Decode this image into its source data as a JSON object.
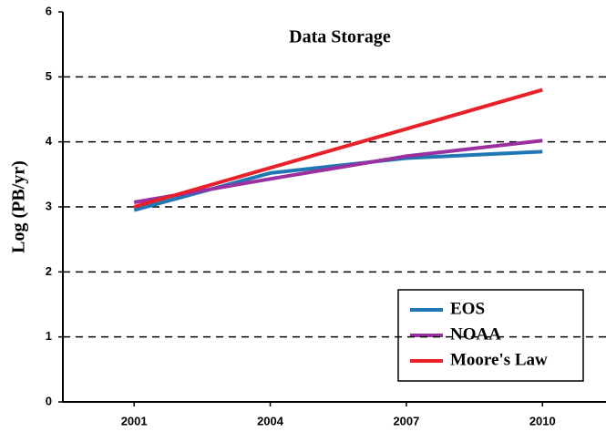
{
  "chart_data": {
    "type": "line",
    "title": "Data Storage",
    "y_label": "Log (PB/yr)",
    "x": [
      2001,
      2004,
      2007,
      2010
    ],
    "series": [
      {
        "name": "EOS",
        "color": "#1f77b4",
        "values": [
          2.95,
          3.52,
          3.75,
          3.85
        ]
      },
      {
        "name": "NOAA",
        "color": "#9b30a0",
        "values": [
          3.07,
          3.43,
          3.78,
          4.02
        ]
      },
      {
        "name": "Moore's Law",
        "color": "#e8202a",
        "values": [
          3.0,
          3.6,
          4.2,
          4.8
        ]
      }
    ],
    "xlim": [
      1999.43,
      2011.4
    ],
    "xticks": [
      2001,
      2004,
      2007,
      2010
    ],
    "ylim": [
      0,
      6
    ],
    "yticks": [
      0,
      1,
      2,
      3,
      4,
      5,
      6
    ],
    "grid": true,
    "legend": "lower right"
  }
}
